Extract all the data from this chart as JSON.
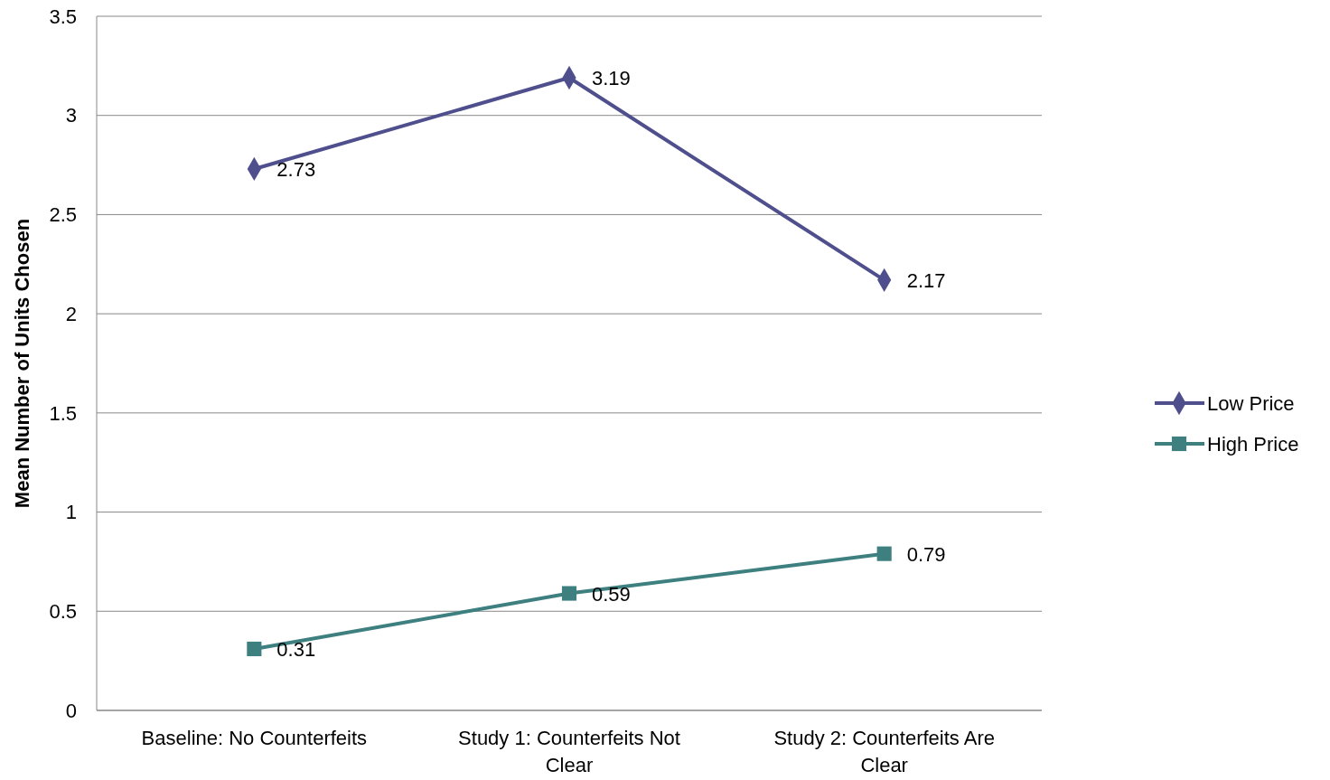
{
  "chart_data": {
    "type": "line",
    "ylabel": "Mean Number of Units Chosen",
    "categories": [
      "Baseline: No Counterfeits",
      "Study 1: Counterfeits Not Clear",
      "Study 2: Counterfeits Are Clear"
    ],
    "series": [
      {
        "name": "Low Price",
        "color": "#4f4f8e",
        "values": [
          2.73,
          3.19,
          2.17
        ],
        "marker": "diamond"
      },
      {
        "name": "High Price",
        "color": "#3e7f80",
        "values": [
          0.31,
          0.59,
          0.79
        ],
        "marker": "square"
      }
    ],
    "ylim": [
      0,
      3.5
    ],
    "yticks": [
      0,
      0.5,
      1,
      1.5,
      2,
      2.5,
      3,
      3.5
    ],
    "grid": "y",
    "legend": "right",
    "data_labels": true
  }
}
